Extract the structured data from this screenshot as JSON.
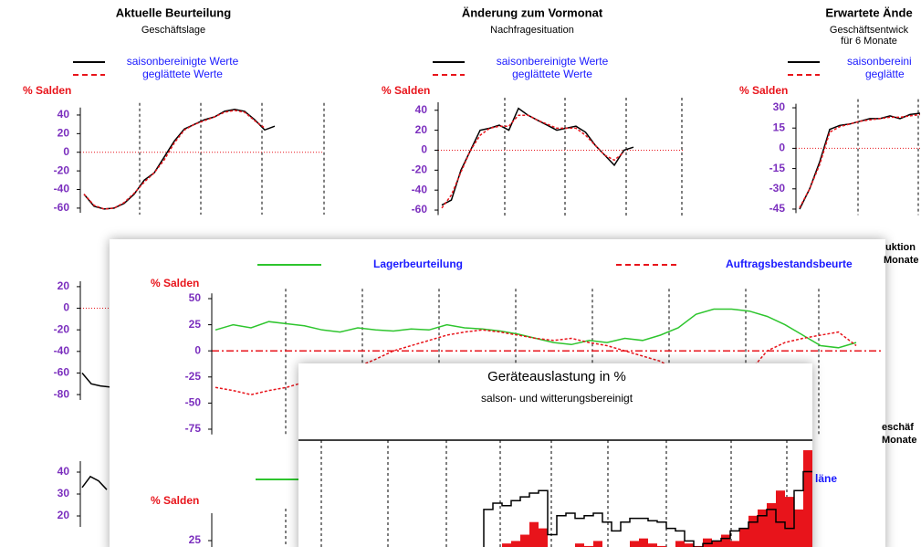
{
  "chart_data": [
    {
      "type": "line",
      "title": "Aktuelle Beurteilung",
      "subtitle": "Geschäftslage",
      "ylabel": "% Salden",
      "ylim": [
        -65,
        48
      ],
      "yticks": [
        40,
        20,
        0,
        -20,
        -40,
        -60
      ],
      "series": [
        {
          "name": "saisonbereinigte Werte",
          "color": "#000000",
          "dash": false,
          "values": [
            -45,
            -58,
            -61,
            -60,
            -55,
            -45,
            -30,
            -22,
            -5,
            12,
            25,
            30,
            35,
            38,
            44,
            46,
            44,
            35,
            24,
            28
          ]
        },
        {
          "name": "geglättete Werte",
          "color": "#e8141b",
          "dash": true,
          "values": [
            -45,
            -57,
            -61,
            -60,
            -54,
            -44,
            -32,
            -22,
            -8,
            10,
            24,
            30,
            34,
            38,
            43,
            45,
            43,
            34,
            26,
            null
          ]
        }
      ]
    },
    {
      "type": "line",
      "title": "Änderung zum Vormonat",
      "subtitle": "Nachfragesituation",
      "ylabel": "% Salden",
      "ylim": [
        -65,
        48
      ],
      "yticks": [
        40,
        20,
        0,
        -20,
        -40,
        -60
      ],
      "series": [
        {
          "name": "saisonbereinigte Werte",
          "color": "#000000",
          "dash": false,
          "values": [
            -55,
            -50,
            -20,
            0,
            20,
            22,
            25,
            20,
            42,
            35,
            30,
            25,
            20,
            22,
            24,
            18,
            5,
            -5,
            -15,
            0,
            3
          ]
        },
        {
          "name": "geglättete Werte",
          "color": "#e8141b",
          "dash": true,
          "values": [
            -58,
            -45,
            -22,
            0,
            15,
            22,
            24,
            24,
            35,
            35,
            30,
            26,
            22,
            22,
            22,
            15,
            5,
            -5,
            -10,
            -2,
            null
          ]
        }
      ]
    },
    {
      "type": "line",
      "title": "Erwartete Ände",
      "subtitle": "Geschäftsentwick",
      "subtitle2": "für 6 Monate",
      "ylabel": "% Salden",
      "ylim": [
        -48,
        33
      ],
      "yticks": [
        30,
        15,
        0,
        -15,
        -30,
        -45
      ],
      "series": [
        {
          "name": "saisonbereini",
          "color": "#000000",
          "dash": false,
          "values": [
            -45,
            -30,
            -10,
            14,
            17,
            18,
            20,
            22,
            22,
            24,
            22,
            25,
            26
          ]
        },
        {
          "name": "geglätte",
          "color": "#e8141b",
          "dash": true,
          "values": [
            -44,
            -30,
            -12,
            12,
            16,
            18,
            20,
            21,
            22,
            23,
            23,
            24,
            25
          ]
        }
      ]
    },
    {
      "type": "line",
      "ylim": [
        -85,
        25
      ],
      "yticks": [
        20,
        0,
        -20,
        -40,
        -60,
        -80
      ],
      "series": [
        {
          "color": "#000000",
          "dash": false,
          "values": [
            -60,
            -70,
            -72,
            -73
          ]
        }
      ]
    },
    {
      "type": "line",
      "ylim": [
        15,
        45
      ],
      "yticks": [
        40,
        30,
        20
      ],
      "series": [
        {
          "color": "#000000",
          "dash": false,
          "values": [
            33,
            38,
            36,
            32
          ]
        }
      ]
    },
    {
      "type": "line",
      "ylabel": "% Salden",
      "ylim": [
        -80,
        55
      ],
      "yticks": [
        50,
        25,
        0,
        -25,
        -50,
        -75
      ],
      "series": [
        {
          "name": "Lagerbeurteilung",
          "color": "#2ec52e",
          "dash": false,
          "values": [
            20,
            25,
            22,
            28,
            26,
            24,
            20,
            18,
            22,
            20,
            19,
            21,
            20,
            25,
            22,
            21,
            19,
            16,
            12,
            8,
            6,
            10,
            8,
            12,
            10,
            15,
            22,
            35,
            40,
            40,
            38,
            33,
            25,
            15,
            5,
            3,
            8
          ]
        },
        {
          "name": "Auftragsbestandsbeurte",
          "color": "#e8141b",
          "dash": true,
          "values": [
            -35,
            -38,
            -42,
            -38,
            -35,
            -30,
            -25,
            -20,
            -15,
            -8,
            0,
            5,
            10,
            15,
            18,
            20,
            18,
            15,
            12,
            10,
            12,
            8,
            5,
            0,
            -5,
            -10,
            -20,
            -30,
            -40,
            -45,
            -20,
            0,
            8,
            12,
            15,
            18,
            5
          ]
        }
      ]
    },
    {
      "type": "line",
      "ylabel": "% Salden",
      "ylim": [
        20,
        40
      ],
      "yticks": [
        25
      ],
      "series": [
        {
          "name": "läne",
          "color": "#2ec52e",
          "dash": false,
          "values": []
        }
      ]
    },
    {
      "type": "bar",
      "title": "Geräteauslastung in %",
      "subtitle": "salson- und witterungsbereinigt",
      "ylim": [
        0,
        100
      ],
      "series": [
        {
          "color": "#e8141b",
          "values": [
            0,
            0,
            0,
            0,
            12,
            15,
            18,
            20,
            25,
            35,
            30,
            12,
            15,
            14,
            18,
            16,
            20,
            14,
            12,
            15,
            20,
            22,
            18,
            16,
            14,
            20,
            18,
            16,
            22,
            20,
            25,
            20,
            30,
            40,
            45,
            50,
            60,
            55,
            45,
            92
          ]
        },
        {
          "color": "#000000",
          "values": [
            0,
            0,
            0,
            0,
            45,
            50,
            48,
            52,
            55,
            58,
            60,
            25,
            40,
            42,
            38,
            40,
            42,
            35,
            28,
            35,
            38,
            38,
            36,
            35,
            30,
            28,
            20,
            15,
            18,
            20,
            22,
            28,
            30,
            35,
            40,
            45,
            35,
            30,
            60,
            75
          ]
        }
      ]
    }
  ],
  "annotations": [
    "uktion",
    "Monate",
    "eschäf",
    "Monate"
  ]
}
